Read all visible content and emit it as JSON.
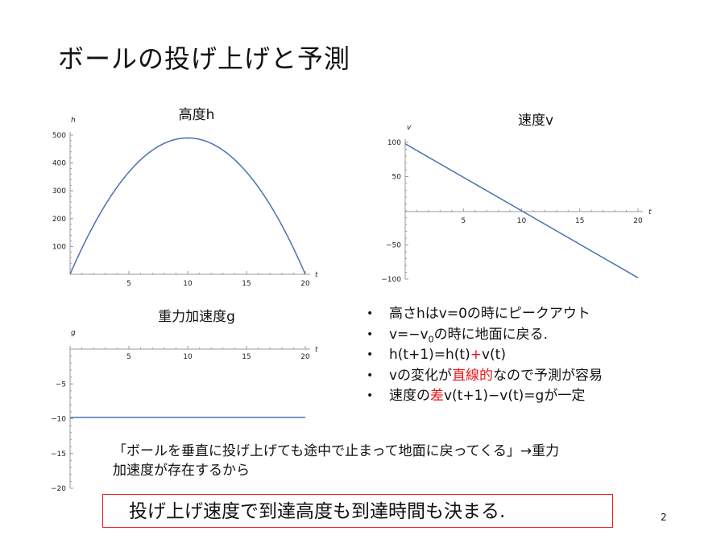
{
  "slide": {
    "title": "ボールの投げ上げと予測",
    "page_number": "2",
    "bullets": [
      {
        "parts": [
          {
            "text": "高さhはv=0の時にピークアウト"
          }
        ]
      },
      {
        "parts": [
          {
            "text": "v=−v"
          },
          {
            "text": "0",
            "sub": true
          },
          {
            "text": "の時に地面に戻る."
          }
        ]
      },
      {
        "parts": [
          {
            "text": "h(t+1)=h(t)"
          },
          {
            "text": "+",
            "red": true
          },
          {
            "text": "v(t)"
          }
        ]
      },
      {
        "parts": [
          {
            "text": "vの変化が"
          },
          {
            "text": "直線的",
            "red": true
          },
          {
            "text": "なので予測が容易"
          }
        ]
      },
      {
        "parts": [
          {
            "text": "速度の"
          },
          {
            "text": "差",
            "red": true
          },
          {
            "text": "v(t+1)−v(t)=gが一定"
          }
        ]
      }
    ],
    "bullet_marker": "•",
    "note_lines": [
      "「ボールを垂直に投げ上げても途中で止まって地面に戻ってくる」→重力",
      "加速度が存在するから"
    ],
    "summary": "投げ上げ速度で到達高度も到達時間も決まる."
  },
  "colors": {
    "line": "#4a72b0",
    "accent_red": "#e8161b",
    "box_border": "#e8161b"
  },
  "chart_data": [
    {
      "type": "line",
      "title": "高度h",
      "xlabel": "t",
      "ylabel": "h",
      "xlim": [
        0,
        20
      ],
      "ylim": [
        0,
        500
      ],
      "xticks": [
        5,
        10,
        15,
        20
      ],
      "yticks": [
        100,
        200,
        300,
        400,
        500
      ],
      "series": [
        {
          "x": [
            0,
            2,
            4,
            6,
            8,
            10,
            12,
            14,
            16,
            18,
            20
          ],
          "y": [
            0,
            176,
            314,
            412,
            470,
            490,
            470,
            412,
            314,
            176,
            0
          ]
        }
      ]
    },
    {
      "type": "line",
      "title": "速度v",
      "xlabel": "t",
      "ylabel": "v",
      "xlim": [
        0,
        20
      ],
      "ylim": [
        -100,
        100
      ],
      "xticks": [
        5,
        10,
        15,
        20
      ],
      "yticks": [
        -100,
        -50,
        50,
        100
      ],
      "series": [
        {
          "x": [
            0,
            20
          ],
          "y": [
            98,
            -98
          ]
        }
      ]
    },
    {
      "type": "line",
      "title": "重力加速度g",
      "xlabel": "t",
      "ylabel": "g",
      "xlim": [
        0,
        20
      ],
      "ylim": [
        -20,
        0
      ],
      "xticks": [
        5,
        10,
        15,
        20
      ],
      "yticks": [
        -20,
        -15,
        -10,
        -5
      ],
      "series": [
        {
          "x": [
            0,
            20
          ],
          "y": [
            -9.8,
            -9.8
          ]
        }
      ]
    }
  ]
}
